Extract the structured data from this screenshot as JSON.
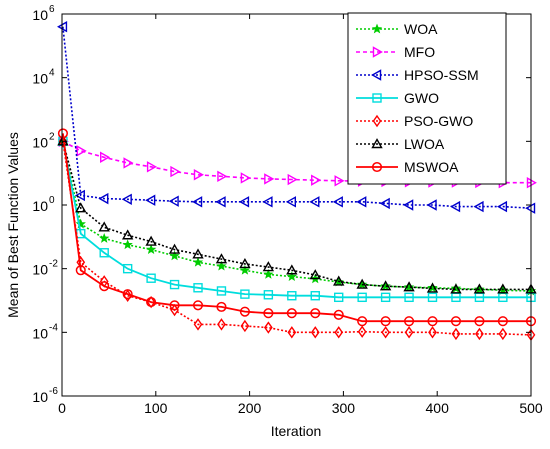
{
  "chart_data": {
    "type": "line",
    "xlabel": "Iteration",
    "ylabel": "Mean of Best Function Values",
    "xlim": [
      0,
      500
    ],
    "ylim_log10": [
      -6,
      6
    ],
    "yscale": "log",
    "grid": false,
    "legend_position": "top-right",
    "x_ticks": [
      {
        "value": 0,
        "label": "0"
      },
      {
        "value": 100,
        "label": "100"
      },
      {
        "value": 200,
        "label": "200"
      },
      {
        "value": 300,
        "label": "300"
      },
      {
        "value": 400,
        "label": "400"
      },
      {
        "value": 500,
        "label": "500"
      }
    ],
    "y_ticks": [
      {
        "exp": -6,
        "label": "10"
      },
      {
        "exp": -4,
        "label": "10"
      },
      {
        "exp": -2,
        "label": "10"
      },
      {
        "exp": 0,
        "label": "10"
      },
      {
        "exp": 2,
        "label": "10"
      },
      {
        "exp": 4,
        "label": "10"
      },
      {
        "exp": 6,
        "label": "10"
      }
    ],
    "y_tick_exponents": [
      "-6",
      "-4",
      "-2",
      "0",
      "2",
      "4",
      "6"
    ],
    "x": [
      1,
      20,
      45,
      70,
      95,
      120,
      145,
      170,
      195,
      220,
      245,
      270,
      295,
      320,
      345,
      370,
      395,
      420,
      445,
      470,
      500
    ],
    "series": [
      {
        "name": "WOA",
        "color": "#00cc00",
        "dash": "2,2",
        "marker": "star",
        "log10_values": [
          2.0,
          -0.6,
          -1.05,
          -1.25,
          -1.4,
          -1.6,
          -1.8,
          -1.92,
          -2.05,
          -2.18,
          -2.25,
          -2.32,
          -2.42,
          -2.5,
          -2.55,
          -2.58,
          -2.6,
          -2.62,
          -2.65,
          -2.68,
          -2.7
        ]
      },
      {
        "name": "MFO",
        "color": "#ff00ff",
        "dash": "4,3",
        "marker": "triangle-right",
        "log10_values": [
          2.0,
          1.7,
          1.5,
          1.32,
          1.2,
          1.05,
          0.95,
          0.9,
          0.85,
          0.82,
          0.8,
          0.78,
          0.76,
          0.75,
          0.74,
          0.73,
          0.72,
          0.72,
          0.71,
          0.7,
          0.7
        ]
      },
      {
        "name": "HPSO-SSM",
        "color": "#0000cc",
        "dash": "2,2",
        "marker": "triangle-left",
        "log10_values": [
          5.6,
          0.3,
          0.2,
          0.18,
          0.15,
          0.12,
          0.1,
          0.1,
          0.1,
          0.1,
          0.1,
          0.1,
          0.1,
          0.1,
          0.05,
          0.0,
          0.0,
          -0.05,
          -0.05,
          -0.05,
          -0.1
        ]
      },
      {
        "name": "GWO",
        "color": "#00dddd",
        "dash": "",
        "marker": "square",
        "log10_values": [
          2.0,
          -0.9,
          -1.5,
          -2.0,
          -2.3,
          -2.5,
          -2.6,
          -2.7,
          -2.8,
          -2.82,
          -2.85,
          -2.85,
          -2.9,
          -2.9,
          -2.9,
          -2.9,
          -2.9,
          -2.9,
          -2.9,
          -2.9,
          -2.9
        ]
      },
      {
        "name": "PSO-GWO",
        "color": "#ff0000",
        "dash": "2,2",
        "marker": "diamond",
        "log10_values": [
          2.0,
          -1.8,
          -2.4,
          -2.85,
          -3.05,
          -3.3,
          -3.75,
          -3.75,
          -3.8,
          -3.85,
          -4.0,
          -4.0,
          -4.0,
          -3.98,
          -4.0,
          -4.0,
          -4.0,
          -4.05,
          -4.05,
          -4.05,
          -4.08
        ]
      },
      {
        "name": "LWOA",
        "color": "#000000",
        "dash": "2,2",
        "marker": "triangle-up",
        "log10_values": [
          2.0,
          -0.1,
          -0.7,
          -0.95,
          -1.15,
          -1.4,
          -1.55,
          -1.7,
          -1.85,
          -1.95,
          -2.05,
          -2.2,
          -2.4,
          -2.5,
          -2.55,
          -2.58,
          -2.62,
          -2.65,
          -2.65,
          -2.65,
          -2.65
        ]
      },
      {
        "name": "MSWOA",
        "color": "#ff0000",
        "dash": "",
        "marker": "circle",
        "log10_values": [
          2.25,
          -2.05,
          -2.55,
          -2.8,
          -3.05,
          -3.15,
          -3.15,
          -3.2,
          -3.35,
          -3.4,
          -3.4,
          -3.4,
          -3.45,
          -3.65,
          -3.65,
          -3.65,
          -3.65,
          -3.65,
          -3.65,
          -3.65,
          -3.65
        ]
      }
    ]
  }
}
